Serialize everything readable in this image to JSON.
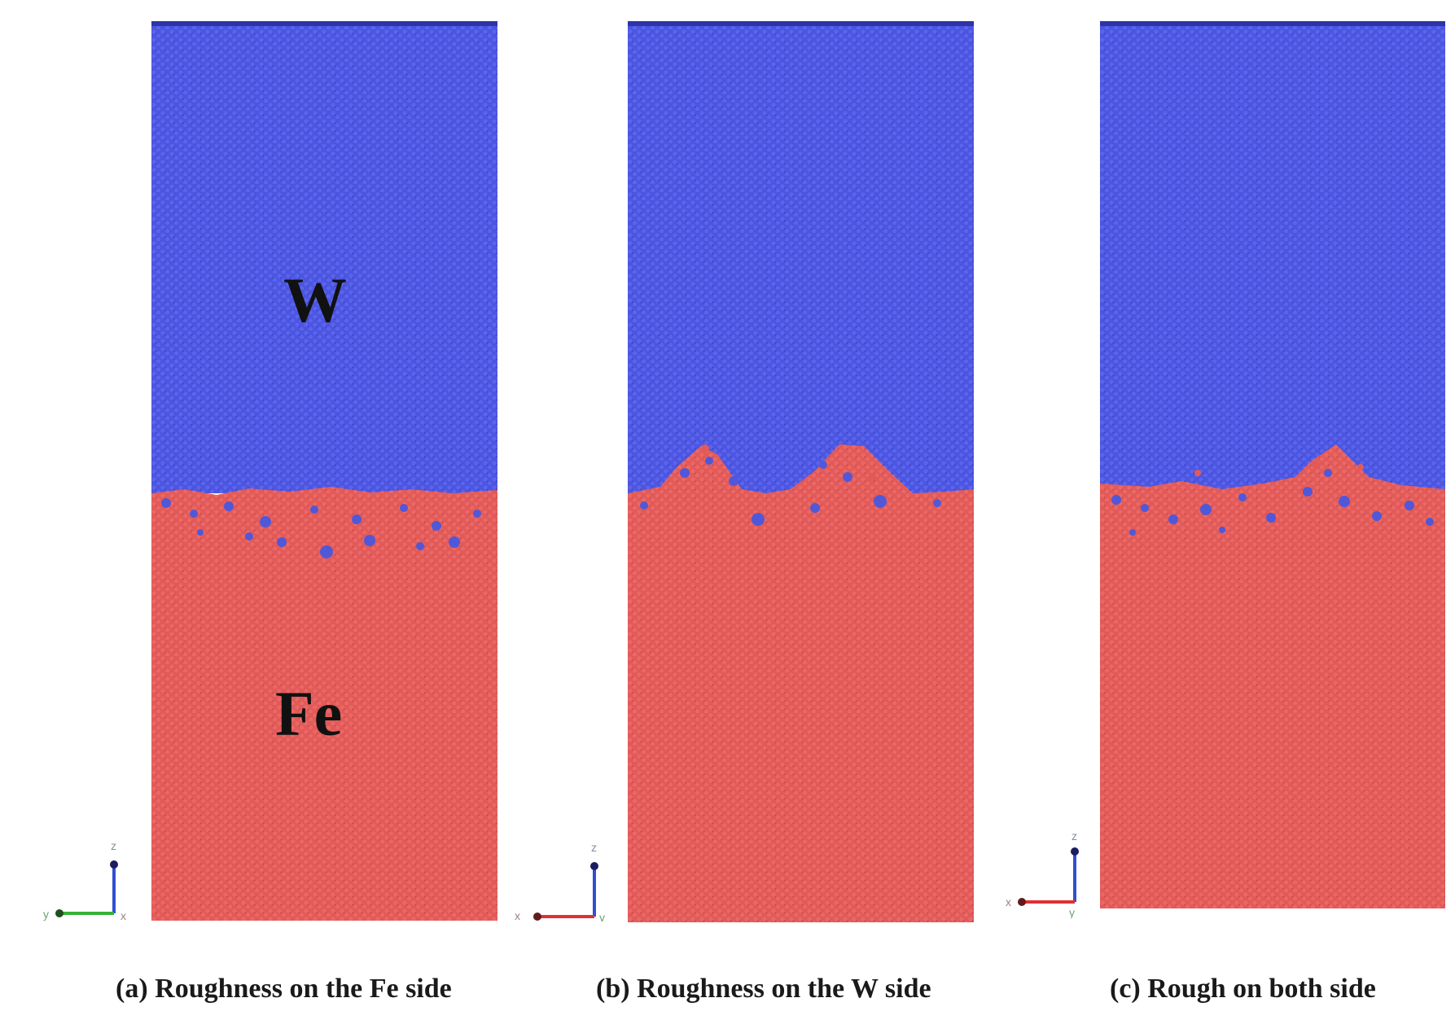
{
  "figure": {
    "colors": {
      "w_atoms": "#4b55e0",
      "fe_atoms": "#e25a58",
      "dark_dot_w": "#2c34a8",
      "dark_dot_fe": "#b8403e",
      "axis_x": "#e03030",
      "axis_y": "#38b038",
      "axis_z": "#3050d0"
    },
    "labels": {
      "w": "W",
      "fe": "Fe"
    },
    "panels": [
      {
        "id": "a",
        "caption": "(a) Roughness on the Fe side",
        "interface_shape": "flat W boundary with W atoms scattered into Fe",
        "axis_triad": {
          "horizontal": "y",
          "vertical": "z",
          "corner": "x"
        }
      },
      {
        "id": "b",
        "caption": "(b) Roughness on the W side",
        "interface_shape": "two Fe mounds protruding into W",
        "axis_triad": {
          "horizontal": "x",
          "vertical": "z",
          "corner": "y"
        }
      },
      {
        "id": "c",
        "caption": "(c) Rough on both side",
        "interface_shape": "mixed rough interface",
        "axis_triad": {
          "horizontal": "x",
          "vertical": "z",
          "corner": "y"
        }
      }
    ]
  }
}
